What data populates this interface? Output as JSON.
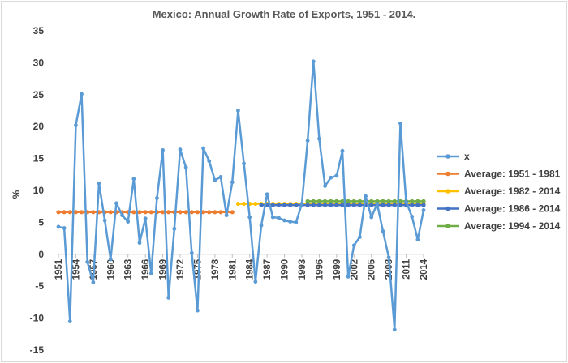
{
  "chart_data": {
    "type": "line",
    "title": "Mexico: Annual Growth Rate of Exports, 1951 - 2014.",
    "xlabel": "",
    "ylabel": "%",
    "ylim": [
      -15,
      35
    ],
    "yticks": [
      35,
      30,
      25,
      20,
      15,
      10,
      5,
      0,
      -5,
      -10,
      -15
    ],
    "xlim": [
      1951,
      2014
    ],
    "xtick_labels": [
      "1951",
      "1954",
      "1957",
      "1960",
      "1963",
      "1966",
      "1969",
      "1972",
      "1975",
      "1978",
      "1981",
      "1984",
      "1987",
      "1990",
      "1993",
      "1996",
      "1999",
      "2002",
      "2005",
      "2008",
      "2011",
      "2014"
    ],
    "grid": false,
    "legend_position": "right",
    "series": [
      {
        "name": "x",
        "color": "#5b9bd5",
        "x": [
          1951,
          1952,
          1953,
          1954,
          1955,
          1956,
          1957,
          1958,
          1959,
          1960,
          1961,
          1962,
          1963,
          1964,
          1965,
          1966,
          1967,
          1968,
          1969,
          1970,
          1971,
          1972,
          1973,
          1974,
          1975,
          1976,
          1977,
          1978,
          1979,
          1980,
          1981,
          1982,
          1983,
          1984,
          1985,
          1986,
          1987,
          1988,
          1989,
          1990,
          1991,
          1992,
          1993,
          1994,
          1995,
          1996,
          1997,
          1998,
          1999,
          2000,
          2001,
          2002,
          2003,
          2004,
          2005,
          2006,
          2007,
          2008,
          2009,
          2010,
          2011,
          2012,
          2013,
          2014
        ],
        "y": [
          4.3,
          4.1,
          -10.5,
          20.2,
          25.1,
          -1.2,
          -4.4,
          11.1,
          5.3,
          -0.8,
          8.0,
          6.1,
          5.1,
          11.8,
          1.8,
          5.6,
          -3.0,
          8.8,
          16.3,
          -6.8,
          4.0,
          16.4,
          13.6,
          0.2,
          -8.8,
          16.6,
          14.6,
          11.6,
          12.1,
          6.1,
          11.3,
          22.5,
          14.2,
          5.8,
          -4.3,
          4.5,
          9.4,
          5.8,
          5.7,
          5.3,
          5.1,
          5.0,
          7.9,
          17.8,
          30.2,
          18.1,
          10.7,
          12.0,
          12.3,
          16.2,
          -3.5,
          1.4,
          2.7,
          9.1,
          5.8,
          7.9,
          3.6,
          -0.5,
          -11.8,
          20.5,
          8.2,
          5.9,
          2.3,
          6.9
        ]
      },
      {
        "name": "Average: 1951 - 1981",
        "color": "#ed7d31",
        "x_start": 1951,
        "x_end": 1981,
        "value": 6.6
      },
      {
        "name": "Average: 1982 - 2014",
        "color": "#ffc000",
        "x_start": 1982,
        "x_end": 2014,
        "value": 7.9
      },
      {
        "name": "Average: 1986 - 2014",
        "color": "#4472c4",
        "x_start": 1986,
        "x_end": 2014,
        "value": 7.7
      },
      {
        "name": "Average: 1994 - 2014",
        "color": "#70ad47",
        "x_start": 1994,
        "x_end": 2014,
        "value": 8.3
      }
    ]
  }
}
